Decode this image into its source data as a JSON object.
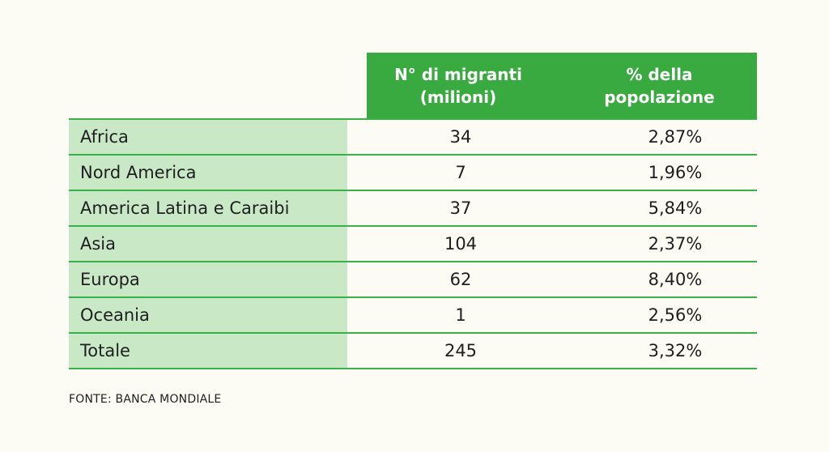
{
  "table": {
    "headers": {
      "migrants": "N° di migranti\n(milioni)",
      "percent": "% della\npopolazione"
    },
    "rows": [
      {
        "region": "Africa",
        "migrants": "34",
        "percent": "2,87%"
      },
      {
        "region": "Nord America",
        "migrants": "7",
        "percent": "1,96%"
      },
      {
        "region": "America Latina e Caraibi",
        "migrants": "37",
        "percent": "5,84%"
      },
      {
        "region": "Asia",
        "migrants": "104",
        "percent": "2,37%"
      },
      {
        "region": "Europa",
        "migrants": "62",
        "percent": "8,40%"
      },
      {
        "region": "Oceania",
        "migrants": "1",
        "percent": "2,56%"
      },
      {
        "region": "Totale",
        "migrants": "245",
        "percent": "3,32%"
      }
    ]
  },
  "source": "FONTE: BANCA MONDIALE",
  "colors": {
    "header_bg": "#38aa40",
    "label_bg": "#c8e8c6",
    "rule": "#3bb048",
    "page_bg": "#fcfcf5"
  }
}
